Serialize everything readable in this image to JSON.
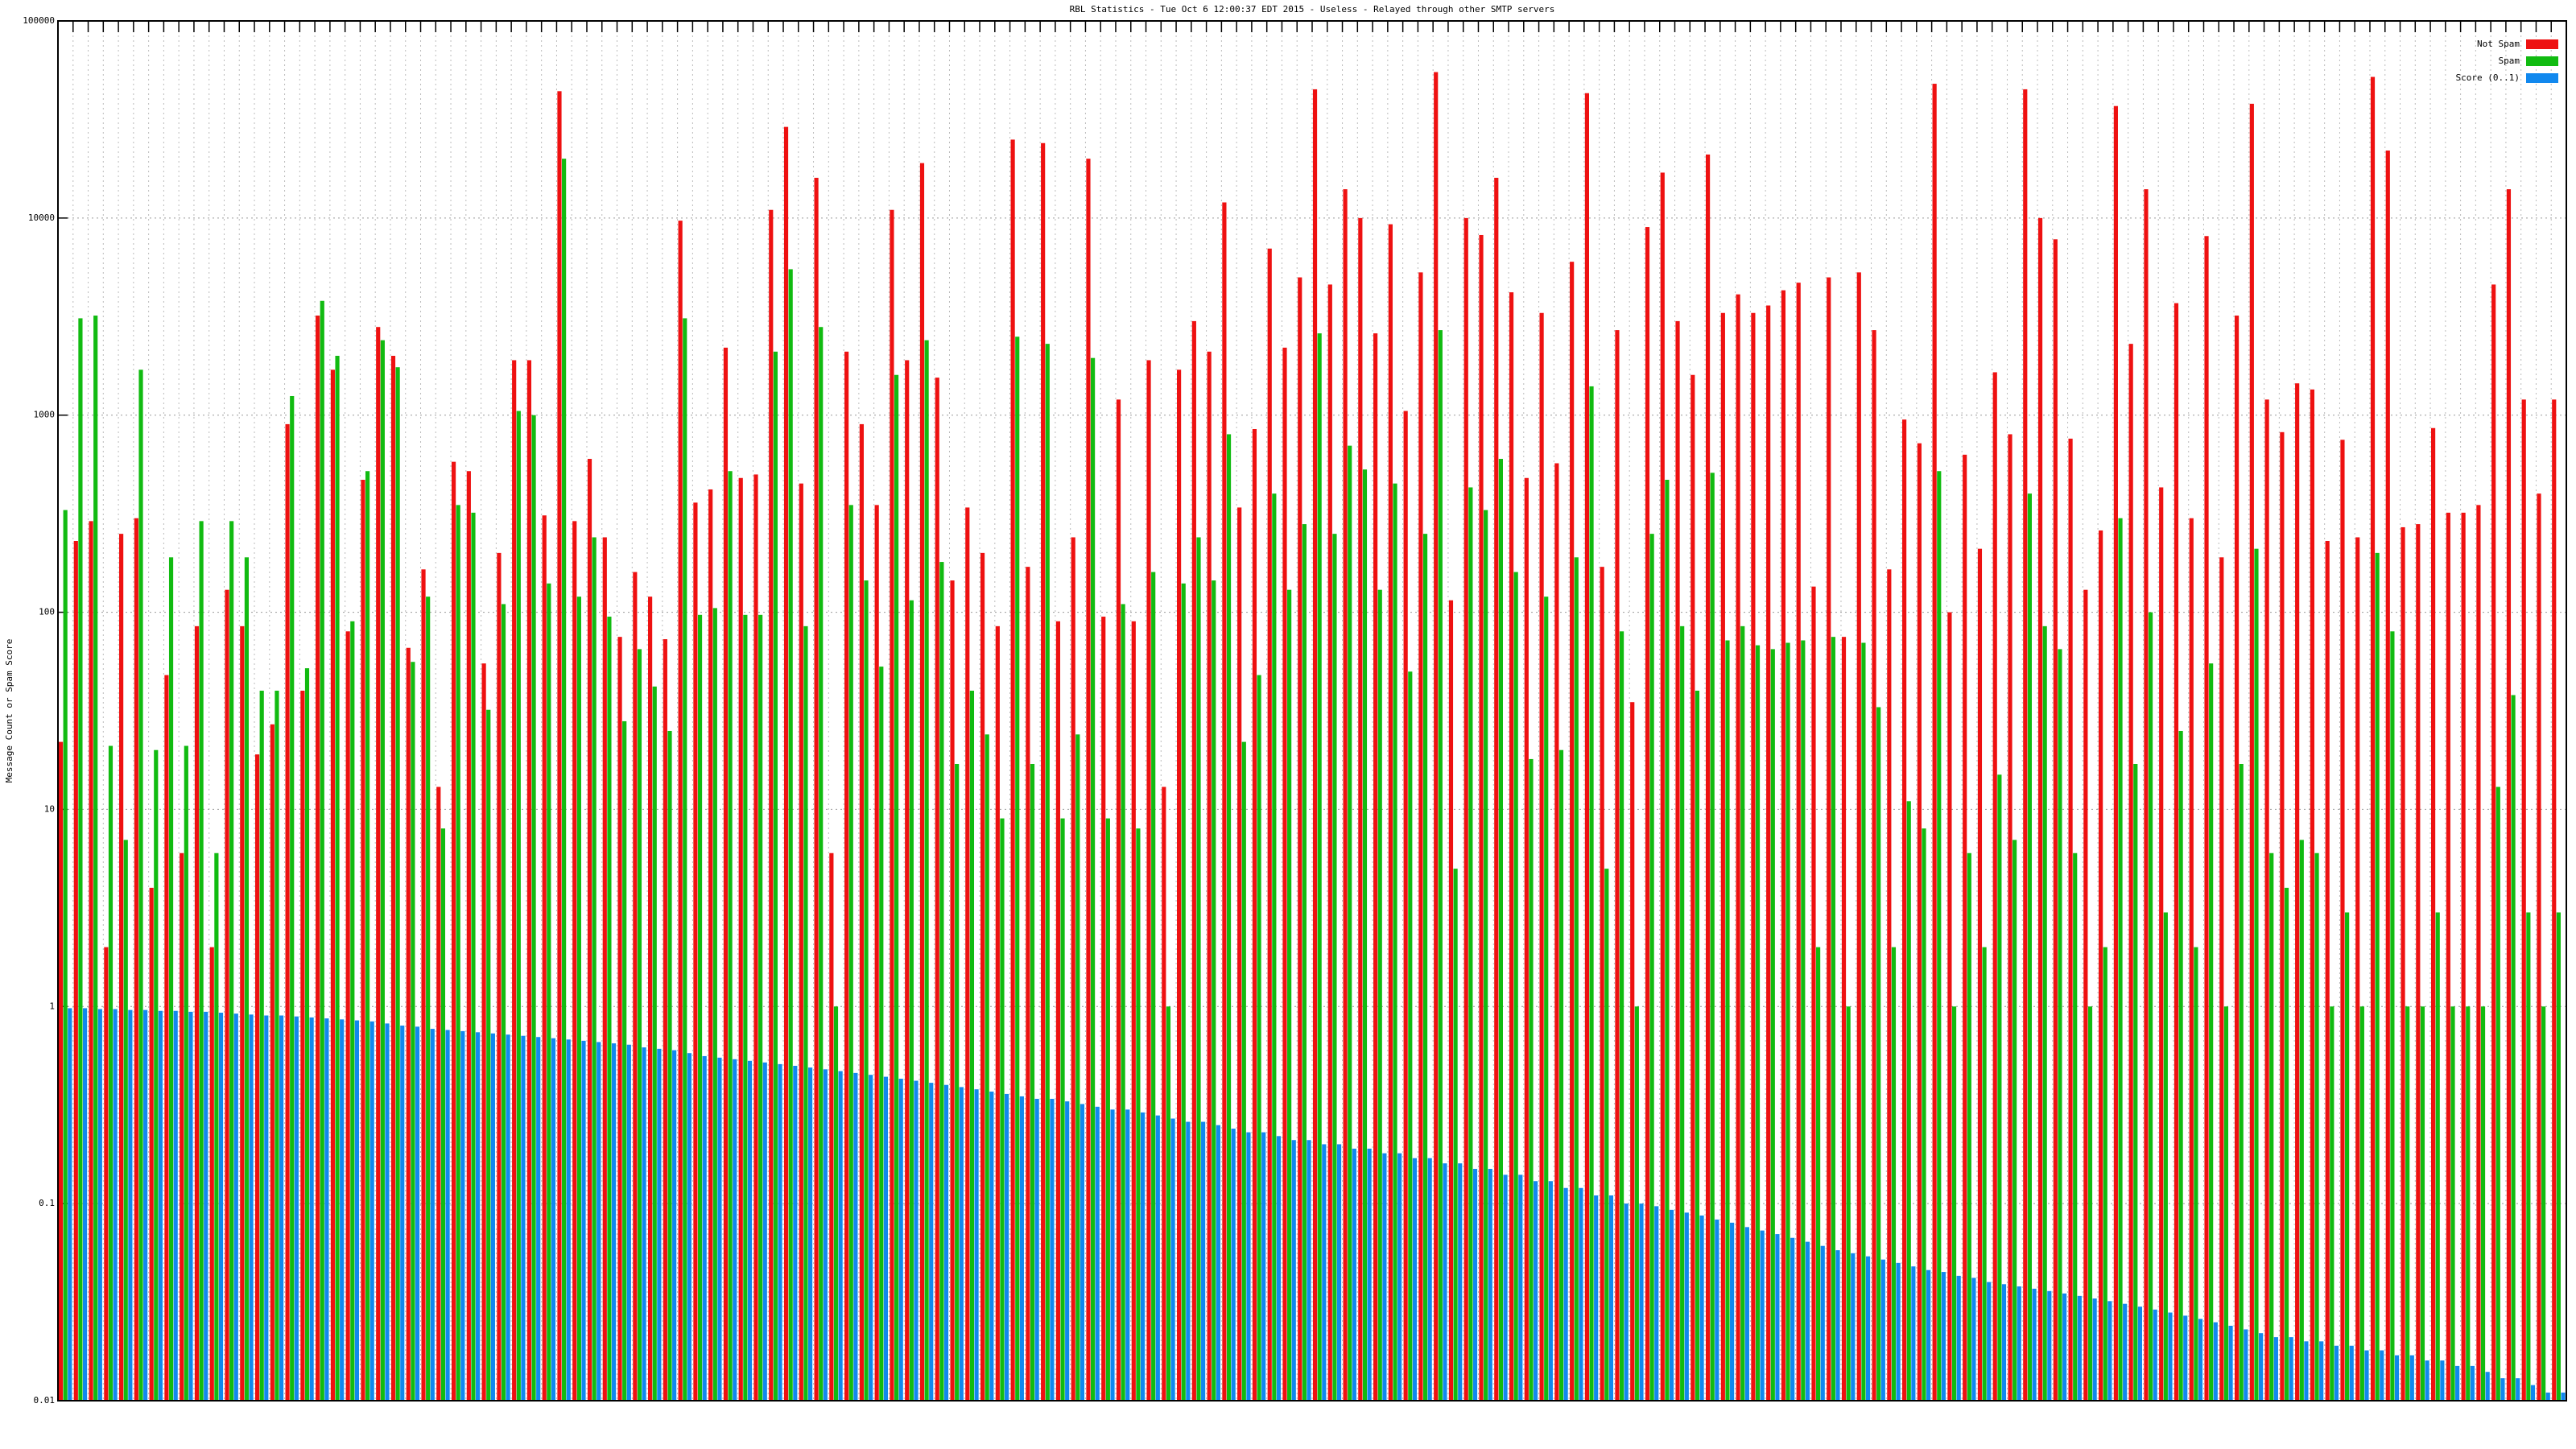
{
  "chart_data": {
    "type": "bar",
    "log_scale": true,
    "grid": true,
    "legend": "top-right",
    "title": "RBL Statistics - Tue Oct  6 12:00:37 EDT 2015 - Useless - Relayed through other SMTP servers",
    "ylabel": "Message Count or Spam Score",
    "ylim": [
      0.01,
      100000
    ],
    "yticks": [
      0.01,
      0.1,
      1,
      10,
      100,
      1000,
      10000,
      100000
    ],
    "categories": [
      null,
      null,
      null,
      null,
      null,
      null,
      null,
      null,
      null,
      null,
      null,
      null,
      null,
      null,
      null,
      null,
      null,
      null,
      null,
      null,
      null,
      null,
      null,
      null,
      null,
      null,
      null,
      null,
      null,
      null,
      null,
      null,
      null,
      null,
      null,
      null,
      null,
      null,
      null,
      null,
      null,
      null,
      null,
      null,
      null,
      null,
      null,
      null,
      null,
      null,
      null,
      null,
      null,
      null,
      null,
      null,
      null,
      null,
      null,
      null,
      null,
      null,
      null,
      null,
      null,
      null,
      null,
      null,
      null,
      null,
      null,
      null,
      null,
      null,
      null,
      null,
      null,
      null,
      null,
      null,
      null,
      null,
      null,
      null,
      null,
      null,
      null,
      null,
      null,
      null,
      null,
      null,
      null,
      null,
      null,
      null,
      null,
      null,
      null,
      null,
      null,
      null,
      null,
      null,
      null,
      null,
      null,
      null,
      null,
      null,
      null,
      null,
      null,
      null,
      null,
      null,
      null,
      null,
      null,
      null,
      null,
      null,
      null,
      null,
      null,
      null,
      null,
      null,
      null,
      null,
      null,
      null,
      null,
      null,
      null,
      null,
      null,
      null,
      null,
      null,
      null,
      null,
      null,
      null,
      null,
      null,
      null,
      null,
      null,
      null,
      null,
      null,
      null,
      null,
      null,
      null,
      null,
      null,
      null,
      null,
      null,
      null,
      null,
      null,
      null,
      null
    ],
    "series": [
      {
        "name": "Not Spam",
        "color": "#ee1111",
        "values": [
          22,
          230,
          290,
          2,
          250,
          300,
          4,
          48,
          6,
          85,
          2,
          130,
          85,
          19,
          27,
          900,
          40,
          3200,
          1700,
          80,
          470,
          2800,
          2000,
          66,
          165,
          13,
          580,
          520,
          55,
          200,
          1900,
          1900,
          310,
          44000,
          290,
          600,
          240,
          75,
          160,
          120,
          73,
          9700,
          360,
          420,
          2200,
          480,
          500,
          11000,
          29000,
          450,
          16000,
          6,
          2100,
          900,
          350,
          11000,
          1900,
          19000,
          1550,
          145,
          340,
          200,
          85,
          25000,
          170,
          24000,
          90,
          240,
          20000,
          95,
          1200,
          90,
          1900,
          13,
          1700,
          3000,
          2100,
          12000,
          340,
          850,
          7000,
          2200,
          5000,
          45000,
          4600,
          14000,
          10000,
          2600,
          9300,
          1050,
          5300,
          55000,
          115,
          10000,
          8200,
          16000,
          4200,
          480,
          3300,
          570,
          6000,
          43000,
          170,
          2700,
          35,
          9000,
          17000,
          3000,
          1600,
          21000,
          3300,
          4100,
          3300,
          3600,
          4300,
          4700,
          135,
          5000,
          75,
          5300,
          2700,
          165,
          950,
          720,
          48000,
          100,
          630,
          210,
          1650,
          800,
          45000,
          10000,
          7800,
          760,
          130,
          260,
          37000,
          2300,
          14000,
          430,
          3700,
          300,
          8100,
          190,
          3200,
          38000,
          1200,
          820,
          1450,
          1350,
          230,
          750,
          240,
          52000,
          22000,
          270,
          280,
          860,
          320,
          320,
          350,
          4600,
          14000,
          1200,
          400,
          1200
        ]
      },
      {
        "name": "Spam",
        "color": "#11bb11",
        "values": [
          330,
          3100,
          3200,
          21,
          7,
          1700,
          20,
          190,
          21,
          290,
          6,
          290,
          190,
          40,
          40,
          1250,
          52,
          3800,
          2000,
          90,
          520,
          2400,
          1750,
          56,
          120,
          8,
          350,
          320,
          32,
          110,
          1050,
          1000,
          140,
          20000,
          120,
          240,
          95,
          28,
          65,
          42,
          25,
          3100,
          97,
          105,
          520,
          97,
          97,
          2100,
          5500,
          85,
          2800,
          1,
          350,
          145,
          53,
          1600,
          115,
          2400,
          180,
          17,
          40,
          24,
          9,
          2500,
          17,
          2300,
          9,
          24,
          1950,
          9,
          110,
          8,
          160,
          1,
          140,
          240,
          145,
          800,
          22,
          48,
          400,
          130,
          280,
          2600,
          250,
          700,
          530,
          130,
          450,
          50,
          250,
          2700,
          5,
          430,
          330,
          600,
          160,
          18,
          120,
          20,
          190,
          1400,
          5,
          80,
          1,
          250,
          470,
          85,
          40,
          510,
          72,
          85,
          68,
          65,
          70,
          72,
          2,
          75,
          1,
          70,
          33,
          2,
          11,
          8,
          520,
          1,
          6,
          2,
          15,
          7,
          400,
          85,
          65,
          6,
          1,
          2,
          300,
          17,
          100,
          3,
          25,
          2,
          55,
          1,
          17,
          210,
          6,
          4,
          7,
          6,
          1,
          3,
          1,
          200,
          80,
          1,
          1,
          3,
          1,
          1,
          1,
          13,
          38,
          3,
          1,
          3
        ]
      },
      {
        "name": "Score (0..1)",
        "color": "#1188ee",
        "values": [
          0.98,
          0.98,
          0.97,
          0.97,
          0.96,
          0.96,
          0.95,
          0.95,
          0.94,
          0.94,
          0.93,
          0.92,
          0.91,
          0.9,
          0.9,
          0.89,
          0.88,
          0.87,
          0.86,
          0.85,
          0.84,
          0.82,
          0.8,
          0.79,
          0.77,
          0.76,
          0.75,
          0.74,
          0.73,
          0.72,
          0.71,
          0.7,
          0.69,
          0.68,
          0.67,
          0.66,
          0.65,
          0.64,
          0.62,
          0.61,
          0.6,
          0.58,
          0.56,
          0.55,
          0.54,
          0.53,
          0.52,
          0.51,
          0.5,
          0.49,
          0.48,
          0.47,
          0.46,
          0.45,
          0.44,
          0.43,
          0.42,
          0.41,
          0.4,
          0.39,
          0.38,
          0.37,
          0.36,
          0.35,
          0.34,
          0.34,
          0.33,
          0.32,
          0.31,
          0.3,
          0.3,
          0.29,
          0.28,
          0.27,
          0.26,
          0.26,
          0.25,
          0.24,
          0.23,
          0.23,
          0.22,
          0.21,
          0.21,
          0.2,
          0.2,
          0.19,
          0.19,
          0.18,
          0.18,
          0.17,
          0.17,
          0.16,
          0.16,
          0.15,
          0.15,
          0.14,
          0.14,
          0.13,
          0.13,
          0.12,
          0.12,
          0.11,
          0.11,
          0.1,
          0.1,
          0.097,
          0.093,
          0.09,
          0.087,
          0.083,
          0.08,
          0.076,
          0.073,
          0.07,
          0.067,
          0.064,
          0.061,
          0.058,
          0.056,
          0.054,
          0.052,
          0.05,
          0.048,
          0.046,
          0.045,
          0.043,
          0.042,
          0.04,
          0.039,
          0.038,
          0.037,
          0.036,
          0.035,
          0.034,
          0.033,
          0.032,
          0.031,
          0.03,
          0.029,
          0.028,
          0.027,
          0.026,
          0.025,
          0.024,
          0.023,
          0.022,
          0.021,
          0.021,
          0.02,
          0.02,
          0.019,
          0.019,
          0.018,
          0.018,
          0.017,
          0.017,
          0.016,
          0.016,
          0.015,
          0.015,
          0.014,
          0.013,
          0.013,
          0.012,
          0.011,
          0.011
        ]
      }
    ]
  }
}
